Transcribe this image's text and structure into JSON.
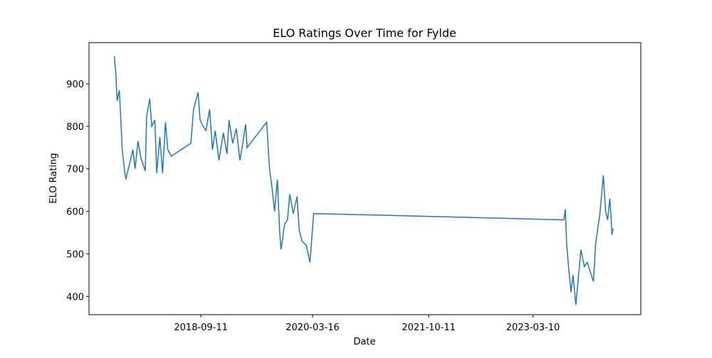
{
  "chart_data": {
    "type": "line",
    "title": "ELO Ratings Over Time for Fylde",
    "x_label": "Date",
    "y_label": "ELO Rating",
    "x": [
      "2017-07-10",
      "2017-07-17",
      "2017-07-24",
      "2017-08-04",
      "2017-08-11",
      "2017-08-18",
      "2017-08-29",
      "2017-09-05",
      "2017-09-30",
      "2017-10-10",
      "2017-10-21",
      "2017-11-04",
      "2017-11-19",
      "2017-12-10",
      "2017-12-17",
      "2018-01-01",
      "2018-01-11",
      "2018-01-26",
      "2018-02-05",
      "2018-02-20",
      "2018-03-06",
      "2018-03-20",
      "2018-03-31",
      "2018-04-18",
      "2018-07-23",
      "2018-08-06",
      "2018-08-28",
      "2018-09-07",
      "2018-09-22",
      "2018-10-06",
      "2018-10-24",
      "2018-11-07",
      "2018-11-21",
      "2018-12-09",
      "2018-12-31",
      "2019-01-18",
      "2019-01-28",
      "2019-02-15",
      "2019-03-05",
      "2019-03-23",
      "2019-04-06",
      "2019-04-20",
      "2019-04-27",
      "2019-08-02",
      "2019-08-16",
      "2019-08-30",
      "2019-09-10",
      "2019-09-24",
      "2019-10-05",
      "2019-10-12",
      "2019-10-30",
      "2019-11-13",
      "2019-11-24",
      "2019-12-12",
      "2019-12-30",
      "2020-01-10",
      "2020-01-24",
      "2020-02-14",
      "2020-03-03",
      "2020-03-14",
      "2020-03-21",
      "2023-08-10",
      "2023-08-17",
      "2023-08-24",
      "2023-09-03",
      "2023-09-14",
      "2023-09-24",
      "2023-10-08",
      "2023-11-02",
      "2023-11-19",
      "2023-12-03",
      "2024-01-03",
      "2024-01-14",
      "2024-02-04",
      "2024-02-21",
      "2024-03-03",
      "2024-03-13",
      "2024-03-24",
      "2024-03-30",
      "2024-04-03",
      "2024-04-10"
    ],
    "series": [
      {
        "name": "Fylde",
        "color": "#1f77b4",
        "values": [
          965,
          930,
          860,
          885,
          820,
          745,
          700,
          675,
          725,
          745,
          700,
          765,
          725,
          695,
          825,
          865,
          800,
          815,
          690,
          775,
          690,
          810,
          745,
          730,
          760,
          840,
          880,
          815,
          800,
          790,
          840,
          745,
          790,
          720,
          785,
          735,
          815,
          760,
          795,
          720,
          760,
          805,
          750,
          810,
          700,
          650,
          600,
          675,
          555,
          510,
          570,
          580,
          640,
          595,
          635,
          555,
          530,
          520,
          480,
          550,
          595,
          580,
          605,
          520,
          465,
          410,
          450,
          380,
          510,
          470,
          480,
          435,
          525,
          595,
          685,
          600,
          580,
          630,
          590,
          545,
          560
        ]
      }
    ],
    "xlim": [
      "2017-03-07",
      "2024-08-24"
    ],
    "xticks": [
      "2018-09-11",
      "2020-03-16",
      "2021-10-11",
      "2023-03-10"
    ],
    "ylim": [
      357,
      997
    ],
    "yticks": [
      400,
      500,
      600,
      700,
      800,
      900
    ]
  }
}
